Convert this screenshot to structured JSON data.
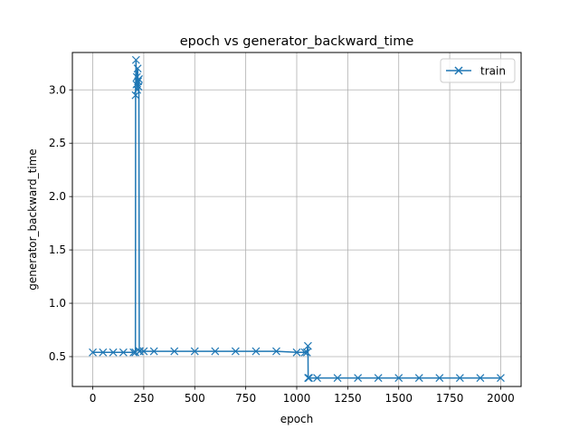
{
  "chart_data": {
    "type": "line",
    "title": "epoch vs generator_backward_time",
    "xlabel": "epoch",
    "ylabel": "generator_backward_time",
    "xlim": [
      -100,
      2100
    ],
    "ylim": [
      0.22,
      3.35
    ],
    "xticks": [
      0,
      250,
      500,
      750,
      1000,
      1250,
      1500,
      1750,
      2000
    ],
    "xtick_labels": [
      "0",
      "250",
      "500",
      "750",
      "1000",
      "1250",
      "1500",
      "1750",
      "2000"
    ],
    "yticks": [
      0.5,
      1.0,
      1.5,
      2.0,
      2.5,
      3.0
    ],
    "ytick_labels": [
      "0.5",
      "1.0",
      "1.5",
      "2.0",
      "2.5",
      "3.0"
    ],
    "grid": true,
    "legend_position": "upper-right",
    "series": [
      {
        "name": "train",
        "color": "#1f77b4",
        "marker": "x",
        "x": [
          0,
          50,
          100,
          150,
          200,
          209,
          210,
          212,
          214,
          216,
          218,
          220,
          222,
          224,
          226,
          228,
          230,
          250,
          300,
          400,
          500,
          600,
          700,
          800,
          900,
          1000,
          1040,
          1050,
          1055,
          1056,
          1060,
          1100,
          1200,
          1300,
          1400,
          1500,
          1600,
          1700,
          1800,
          1900,
          2000
        ],
        "values": [
          0.54,
          0.54,
          0.54,
          0.54,
          0.54,
          0.54,
          2.95,
          3.28,
          3.05,
          3.12,
          3.0,
          3.2,
          3.08,
          3.03,
          3.1,
          0.55,
          0.55,
          0.55,
          0.55,
          0.55,
          0.55,
          0.55,
          0.55,
          0.55,
          0.55,
          0.54,
          0.54,
          0.54,
          0.6,
          0.3,
          0.3,
          0.3,
          0.3,
          0.3,
          0.3,
          0.3,
          0.3,
          0.3,
          0.3,
          0.3,
          0.3
        ]
      }
    ]
  }
}
